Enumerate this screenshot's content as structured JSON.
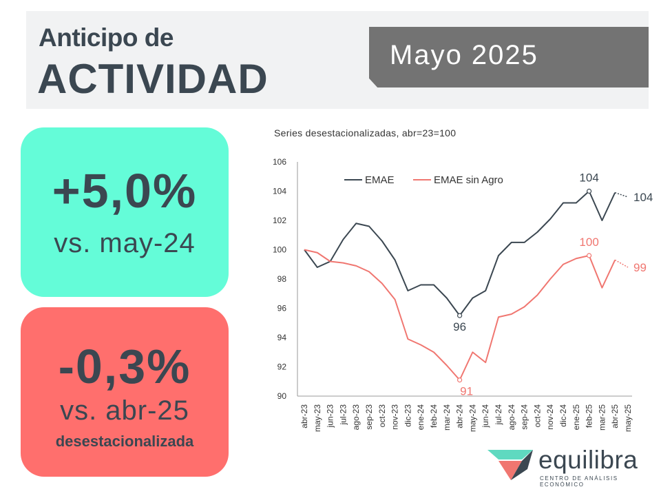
{
  "header": {
    "title_small": "Anticipo de",
    "title_big": "ACTIVIDAD",
    "month": "Mayo 2025"
  },
  "cards": {
    "yoy": {
      "value": "+5,0%",
      "label": "vs. may-24",
      "color": "#64fcd8"
    },
    "mom": {
      "value": "-0,3%",
      "label": "vs. abr-25",
      "note": "desestacionalizada",
      "color": "#ff6f6d"
    }
  },
  "logo": {
    "name": "equilibra",
    "subtitle": "CENTRO DE ANÁLISIS ECONÓMICO"
  },
  "chart_data": {
    "type": "line",
    "title": "Series desestacionalizadas, abr=23=100",
    "xlabel": "",
    "ylabel": "",
    "ylim": [
      90,
      106
    ],
    "yticks": [
      90,
      92,
      94,
      96,
      98,
      100,
      102,
      104,
      106
    ],
    "grid": false,
    "legend_position": "top-left",
    "categories": [
      "abr-23",
      "may-23",
      "jun-23",
      "jul-23",
      "ago-23",
      "sep-23",
      "oct-23",
      "nov-23",
      "dic-23",
      "ene-24",
      "feb-24",
      "mar-24",
      "abr-24",
      "may-24",
      "jun-24",
      "jul-24",
      "ago-24",
      "sep-24",
      "oct-24",
      "nov-24",
      "dic-24",
      "ene-25",
      "feb-25",
      "mar-25",
      "abr-25",
      "may-25"
    ],
    "series": [
      {
        "name": "EMAE",
        "color": "#3b4751",
        "values": [
          100.0,
          98.8,
          99.2,
          100.7,
          101.8,
          101.6,
          100.6,
          99.3,
          97.2,
          97.6,
          97.6,
          96.7,
          95.5,
          96.7,
          97.2,
          99.6,
          100.5,
          100.5,
          101.2,
          102.1,
          103.2,
          103.2,
          104.0,
          102.0,
          103.9,
          103.6
        ],
        "annotations": [
          {
            "index": 12,
            "label": "96"
          },
          {
            "index": 22,
            "label": "104"
          },
          {
            "index": 25,
            "label": "104"
          }
        ]
      },
      {
        "name": "EMAE sin Agro",
        "color": "#f07670",
        "values": [
          100.0,
          99.8,
          99.2,
          99.1,
          98.9,
          98.5,
          97.7,
          96.6,
          93.9,
          93.5,
          93.0,
          92.1,
          91.1,
          93.0,
          92.3,
          95.4,
          95.6,
          96.1,
          96.9,
          98.0,
          99.0,
          99.4,
          99.6,
          97.4,
          99.3,
          98.8
        ],
        "annotations": [
          {
            "index": 12,
            "label": "91"
          },
          {
            "index": 22,
            "label": "100"
          },
          {
            "index": 25,
            "label": "99"
          }
        ]
      }
    ]
  }
}
